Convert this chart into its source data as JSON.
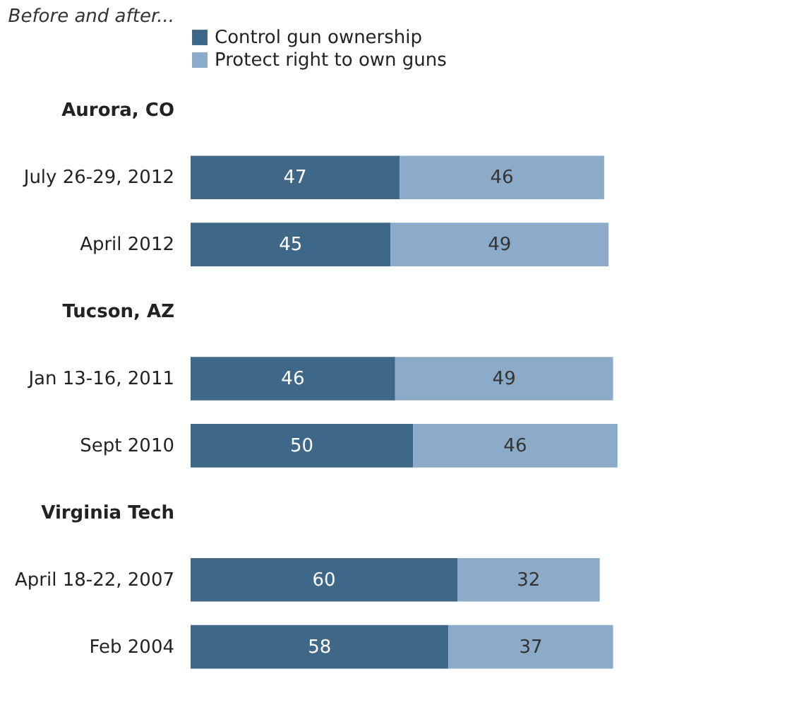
{
  "chart_data": {
    "type": "bar",
    "orientation": "horizontal",
    "stacked": true,
    "data_labels": true,
    "legend": "top",
    "annotations": [
      "Before and after..."
    ],
    "categories": [
      "Aurora, CO",
      "July 26-29, 2012",
      "April 2012",
      "Tucson, AZ",
      "Jan 13-16, 2011",
      "Sept 2010",
      "Virginia Tech",
      "April 18-22, 2007",
      "Feb 2004"
    ],
    "series": [
      {
        "name": "Control gun ownership",
        "color": "#3e6788",
        "values": [
          null,
          47,
          45,
          null,
          46,
          50,
          null,
          60,
          58
        ]
      },
      {
        "name": "Protect right to own guns",
        "color": "#8babc8",
        "values": [
          null,
          46,
          49,
          null,
          49,
          46,
          null,
          32,
          37
        ]
      }
    ]
  }
}
